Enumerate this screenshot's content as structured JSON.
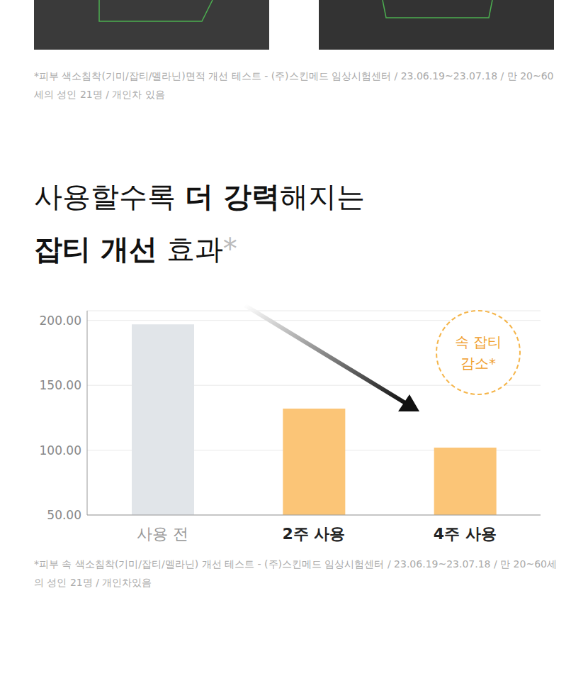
{
  "chart_data": {
    "type": "bar",
    "top_note": "*피부 색소침착(기미/잡티/멜라닌)면적 개선 테스트 - (주)스킨메드 임상시험센터 / 23.06.19~23.07.18 / 만 20~60세의 성인 21명 / 개인차 있음",
    "title": [
      [
        {
          "text": "사용할수록 ",
          "style": "normal"
        },
        {
          "text": "더 강력",
          "style": "bold"
        },
        {
          "text": "해지는",
          "style": "normal"
        }
      ],
      [
        {
          "text": "잡티 개선",
          "style": "bold"
        },
        {
          "text": " 효과",
          "style": "normal"
        },
        {
          "text": "*",
          "style": "note"
        }
      ]
    ],
    "categories": [
      "사용 전",
      "2주 사용",
      "4주 사용"
    ],
    "values": [
      197,
      132,
      102
    ],
    "colors": [
      "#e1e5e9",
      "#fbc577",
      "#fbc577"
    ],
    "ylim": [
      50,
      207.5
    ],
    "yticks": [
      {
        "value": 50,
        "label": "50.00"
      },
      {
        "value": 100,
        "label": "100.00"
      },
      {
        "value": 150,
        "label": "150.00"
      },
      {
        "value": 200,
        "label": "200.00"
      }
    ],
    "grid": true,
    "annotation": "속 잡티 감소*",
    "footnote": "*피부 속 색소침착(기미/잡티/멜라닌) 개선 테스트 - (주)스킨메드 임상시험센터 / 23.06.19~23.07.18 / 만 20~60세의 성인 21명 / 개인차있음"
  }
}
